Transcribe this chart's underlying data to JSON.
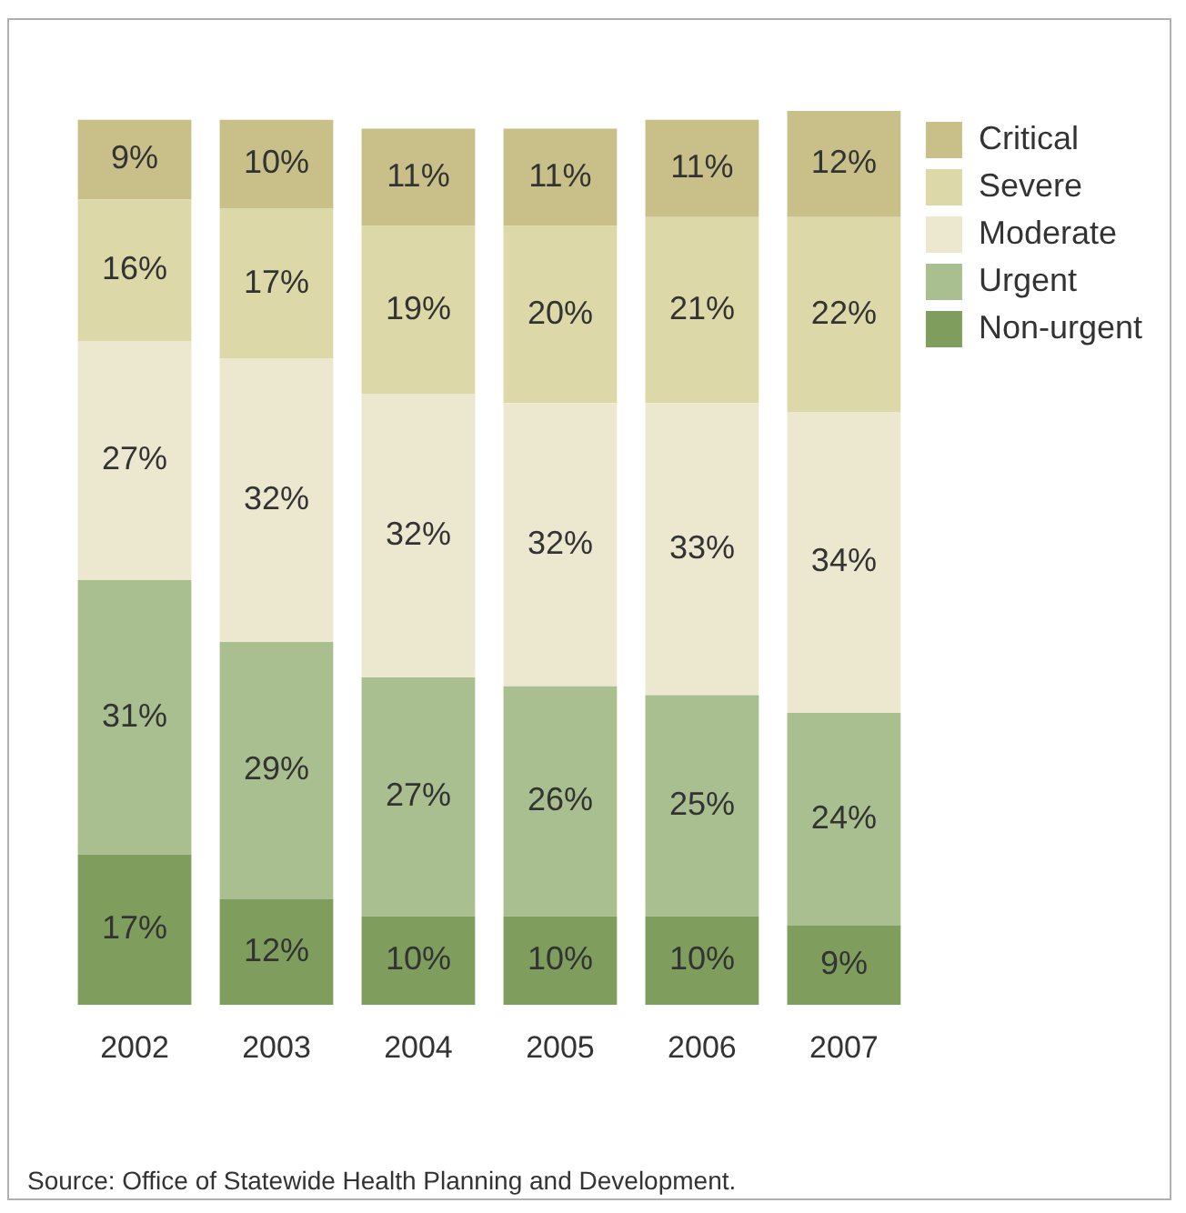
{
  "chart_data": {
    "type": "bar",
    "stacked": true,
    "categories": [
      "2002",
      "2003",
      "2004",
      "2005",
      "2006",
      "2007"
    ],
    "series": [
      {
        "name": "Non-urgent",
        "color": "#7f9e5e",
        "values": [
          17,
          12,
          10,
          10,
          10,
          9
        ],
        "value_labels": [
          "17%",
          "12%",
          "10%",
          "10%",
          "10%",
          "9%"
        ]
      },
      {
        "name": "Urgent",
        "color": "#aabf90",
        "values": [
          31,
          29,
          27,
          26,
          25,
          24
        ],
        "value_labels": [
          "31%",
          "29%",
          "27%",
          "26%",
          "25%",
          "24%"
        ]
      },
      {
        "name": "Moderate",
        "color": "#ebe8cf",
        "values": [
          27,
          32,
          32,
          32,
          33,
          34
        ],
        "value_labels": [
          "27%",
          "32%",
          "32%",
          "32%",
          "33%",
          "34%"
        ]
      },
      {
        "name": "Severe",
        "color": "#ddd8a8",
        "values": [
          16,
          17,
          19,
          20,
          21,
          22
        ],
        "value_labels": [
          "16%",
          "17%",
          "19%",
          "20%",
          "21%",
          "22%"
        ]
      },
      {
        "name": "Critical",
        "color": "#c9c089",
        "values": [
          9,
          10,
          11,
          11,
          11,
          12
        ],
        "value_labels": [
          "9%",
          "10%",
          "11%",
          "11%",
          "11%",
          "12%"
        ]
      }
    ],
    "legend": "top right",
    "grid": false,
    "tick_labels": "x",
    "annotations": [
      "Source: Office of Statewide Health Planning and Development."
    ]
  }
}
